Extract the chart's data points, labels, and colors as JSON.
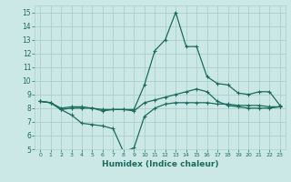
{
  "title": "",
  "xlabel": "Humidex (Indice chaleur)",
  "ylabel": "",
  "xlim": [
    -0.5,
    23.5
  ],
  "ylim": [
    5,
    15.5
  ],
  "xticks": [
    0,
    1,
    2,
    3,
    4,
    5,
    6,
    7,
    8,
    9,
    10,
    11,
    12,
    13,
    14,
    15,
    16,
    17,
    18,
    19,
    20,
    21,
    22,
    23
  ],
  "yticks": [
    5,
    6,
    7,
    8,
    9,
    10,
    11,
    12,
    13,
    14,
    15
  ],
  "bg_color": "#cce8e6",
  "grid_color": "#aacfcc",
  "line_color": "#1a6b5e",
  "line1_x": [
    0,
    1,
    2,
    3,
    4,
    5,
    6,
    7,
    8,
    9,
    10,
    11,
    12,
    13,
    14,
    15,
    16,
    17,
    18,
    19,
    20,
    21,
    22,
    23
  ],
  "line1_y": [
    8.5,
    8.4,
    7.9,
    7.5,
    6.9,
    6.8,
    6.7,
    6.5,
    4.8,
    5.1,
    7.4,
    8.0,
    8.3,
    8.4,
    8.4,
    8.4,
    8.4,
    8.3,
    8.3,
    8.2,
    8.2,
    8.2,
    8.1,
    8.1
  ],
  "line2_x": [
    0,
    1,
    2,
    3,
    4,
    5,
    6,
    7,
    8,
    9,
    10,
    11,
    12,
    13,
    14,
    15,
    16,
    17,
    18,
    19,
    20,
    21,
    22,
    23
  ],
  "line2_y": [
    8.5,
    8.4,
    8.0,
    8.1,
    8.1,
    8.0,
    7.9,
    7.9,
    7.9,
    7.8,
    8.4,
    8.6,
    8.8,
    9.0,
    9.2,
    9.4,
    9.2,
    8.5,
    8.2,
    8.1,
    8.0,
    8.0,
    8.0,
    8.1
  ],
  "line3_x": [
    0,
    1,
    2,
    3,
    4,
    5,
    6,
    7,
    8,
    9,
    10,
    11,
    12,
    13,
    14,
    15,
    16,
    17,
    18,
    19,
    20,
    21,
    22,
    23
  ],
  "line3_y": [
    8.5,
    8.4,
    7.9,
    8.0,
    8.0,
    8.0,
    7.8,
    7.9,
    7.9,
    7.9,
    9.7,
    12.2,
    13.0,
    15.0,
    12.5,
    12.5,
    10.3,
    9.8,
    9.7,
    9.1,
    9.0,
    9.2,
    9.2,
    8.2
  ],
  "marker": "+",
  "markersize": 3.5,
  "linewidth": 0.9
}
